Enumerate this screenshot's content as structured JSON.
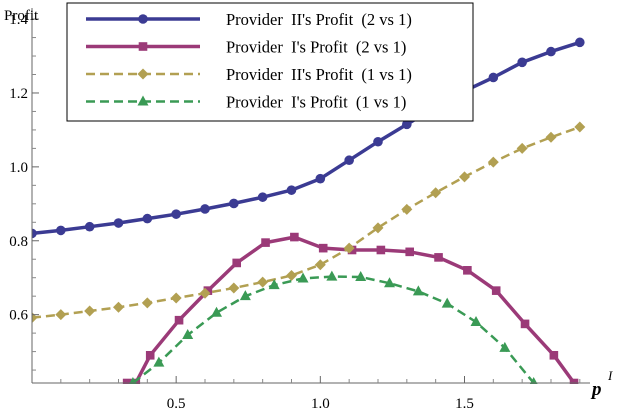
{
  "chart_data": {
    "type": "line",
    "ylabel": "Profit",
    "xlabel": "p",
    "xlabel_superscript": "I",
    "xlim": [
      0.0,
      1.97
    ],
    "ylim": [
      0.415,
      1.43
    ],
    "x_ticks": [
      0.5,
      1.0,
      1.5
    ],
    "x_tick_labels": [
      "0.5",
      "1.0",
      "1.5"
    ],
    "y_ticks": [
      0.6,
      0.8,
      1.0,
      1.2,
      1.4
    ],
    "y_tick_labels": [
      "0.6",
      "0.8",
      "1.0",
      "1.2",
      "1.4"
    ],
    "legend_position": "top-left",
    "series": [
      {
        "name": "Provider  II's Profit  (2 vs 1)",
        "color": "#3b3b93",
        "dash": "solid",
        "marker": "circle",
        "width": 3.5,
        "x": [
          0.0,
          0.1,
          0.2,
          0.3,
          0.4,
          0.5,
          0.6,
          0.7,
          0.8,
          0.9,
          1.0,
          1.1,
          1.2,
          1.3,
          1.4,
          1.5,
          1.6,
          1.7,
          1.8,
          1.9
        ],
        "y": [
          0.82,
          0.828,
          0.838,
          0.848,
          0.86,
          0.872,
          0.886,
          0.901,
          0.918,
          0.937,
          0.968,
          1.018,
          1.068,
          1.115,
          1.162,
          1.205,
          1.242,
          1.283,
          1.312,
          1.337
        ]
      },
      {
        "name": "Provider  I's Profit  (2 vs 1)",
        "color": "#9b3a78",
        "dash": "solid",
        "marker": "square",
        "width": 3.5,
        "x": [
          0.33,
          0.36,
          0.41,
          0.51,
          0.61,
          0.71,
          0.81,
          0.91,
          1.01,
          1.11,
          1.21,
          1.31,
          1.41,
          1.51,
          1.61,
          1.71,
          1.81,
          1.88
        ],
        "y": [
          0.415,
          0.415,
          0.49,
          0.585,
          0.665,
          0.74,
          0.795,
          0.81,
          0.78,
          0.775,
          0.775,
          0.77,
          0.755,
          0.72,
          0.665,
          0.575,
          0.49,
          0.415
        ]
      },
      {
        "name": "Provider  II's Profit  (1 vs 1)",
        "color": "#b2a052",
        "dash": "dashed",
        "marker": "diamond",
        "width": 2.5,
        "x": [
          0.0,
          0.1,
          0.2,
          0.3,
          0.4,
          0.5,
          0.6,
          0.7,
          0.8,
          0.9,
          1.0,
          1.1,
          1.2,
          1.3,
          1.4,
          1.5,
          1.6,
          1.7,
          1.8,
          1.9
        ],
        "y": [
          0.592,
          0.6,
          0.61,
          0.62,
          0.632,
          0.645,
          0.658,
          0.672,
          0.688,
          0.706,
          0.735,
          0.78,
          0.835,
          0.885,
          0.93,
          0.973,
          1.013,
          1.05,
          1.08,
          1.108
        ]
      },
      {
        "name": "Provider  I's Profit  (1 vs 1)",
        "color": "#3a9a55",
        "dash": "dashed",
        "marker": "triangle",
        "width": 2.5,
        "x": [
          0.35,
          0.44,
          0.54,
          0.64,
          0.74,
          0.84,
          0.94,
          1.04,
          1.14,
          1.24,
          1.34,
          1.44,
          1.54,
          1.64,
          1.74
        ],
        "y": [
          0.415,
          0.47,
          0.545,
          0.605,
          0.65,
          0.68,
          0.698,
          0.703,
          0.702,
          0.685,
          0.663,
          0.63,
          0.58,
          0.51,
          0.415
        ]
      }
    ]
  }
}
